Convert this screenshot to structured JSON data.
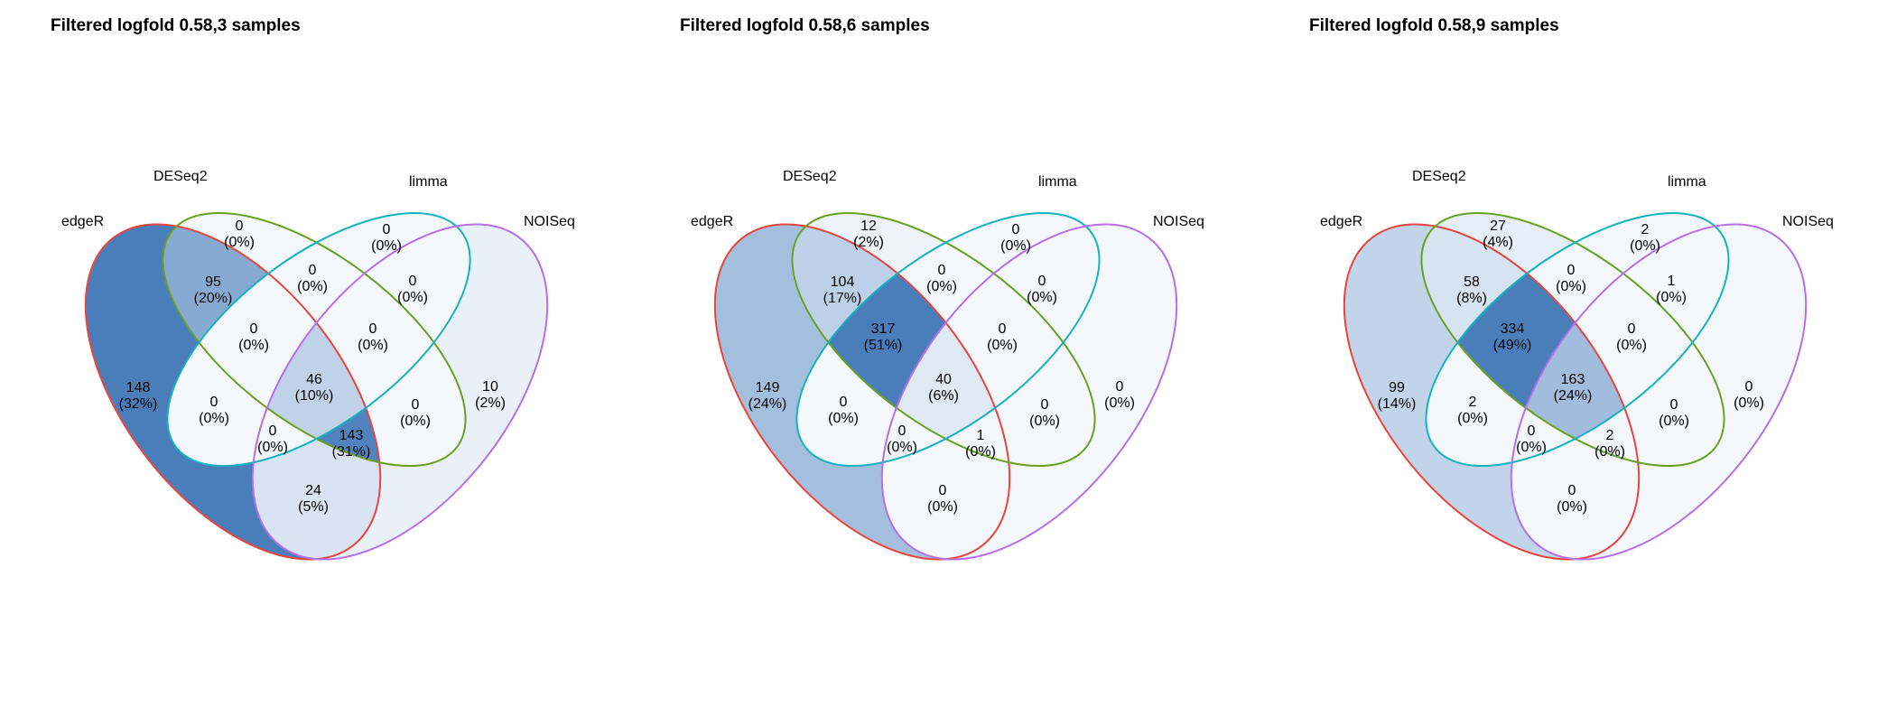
{
  "colors": {
    "edgeR": "#e8453c",
    "DESeq2": "#6aa121",
    "limma": "#14b3bf",
    "NOISeq": "#b76fe8",
    "fill_min": "#f4f8fc",
    "fill_max": "#4a7ebb"
  },
  "panels": [
    {
      "title": "Filtered logfold 0.58,3 samples",
      "sets": [
        "edgeR",
        "DESeq2",
        "limma",
        "NOISeq"
      ],
      "set_labels": [
        "edgeR",
        "DESeq2",
        "limma",
        "NOISeq"
      ],
      "regions": [
        {
          "sets": [
            "edgeR"
          ],
          "count": "148",
          "pct": "(32%)"
        },
        {
          "sets": [
            "DESeq2"
          ],
          "count": "0",
          "pct": "(0%)"
        },
        {
          "sets": [
            "limma"
          ],
          "count": "0",
          "pct": "(0%)"
        },
        {
          "sets": [
            "NOISeq"
          ],
          "count": "10",
          "pct": "(2%)"
        },
        {
          "sets": [
            "edgeR",
            "DESeq2"
          ],
          "count": "95",
          "pct": "(20%)"
        },
        {
          "sets": [
            "DESeq2",
            "limma"
          ],
          "count": "0",
          "pct": "(0%)"
        },
        {
          "sets": [
            "limma",
            "NOISeq"
          ],
          "count": "0",
          "pct": "(0%)"
        },
        {
          "sets": [
            "edgeR",
            "DESeq2",
            "limma"
          ],
          "count": "0",
          "pct": "(0%)"
        },
        {
          "sets": [
            "DESeq2",
            "limma",
            "NOISeq"
          ],
          "count": "0",
          "pct": "(0%)"
        },
        {
          "sets": [
            "edgeR",
            "DESeq2",
            "limma",
            "NOISeq"
          ],
          "count": "46",
          "pct": "(10%)"
        },
        {
          "sets": [
            "edgeR",
            "limma"
          ],
          "count": "0",
          "pct": "(0%)"
        },
        {
          "sets": [
            "DESeq2",
            "NOISeq"
          ],
          "count": "0",
          "pct": "(0%)"
        },
        {
          "sets": [
            "edgeR",
            "limma",
            "NOISeq"
          ],
          "count": "0",
          "pct": "(0%)"
        },
        {
          "sets": [
            "edgeR",
            "DESeq2",
            "NOISeq"
          ],
          "count": "143",
          "pct": "(31%)"
        },
        {
          "sets": [
            "edgeR",
            "NOISeq"
          ],
          "count": "24",
          "pct": "(5%)"
        }
      ]
    },
    {
      "title": "Filtered logfold 0.58,6 samples",
      "sets": [
        "edgeR",
        "DESeq2",
        "limma",
        "NOISeq"
      ],
      "set_labels": [
        "edgeR",
        "DESeq2",
        "limma",
        "NOISeq"
      ],
      "regions": [
        {
          "sets": [
            "edgeR"
          ],
          "count": "149",
          "pct": "(24%)"
        },
        {
          "sets": [
            "DESeq2"
          ],
          "count": "12",
          "pct": "(2%)"
        },
        {
          "sets": [
            "limma"
          ],
          "count": "0",
          "pct": "(0%)"
        },
        {
          "sets": [
            "NOISeq"
          ],
          "count": "0",
          "pct": "(0%)"
        },
        {
          "sets": [
            "edgeR",
            "DESeq2"
          ],
          "count": "104",
          "pct": "(17%)"
        },
        {
          "sets": [
            "DESeq2",
            "limma"
          ],
          "count": "0",
          "pct": "(0%)"
        },
        {
          "sets": [
            "limma",
            "NOISeq"
          ],
          "count": "0",
          "pct": "(0%)"
        },
        {
          "sets": [
            "edgeR",
            "DESeq2",
            "limma"
          ],
          "count": "317",
          "pct": "(51%)"
        },
        {
          "sets": [
            "DESeq2",
            "limma",
            "NOISeq"
          ],
          "count": "0",
          "pct": "(0%)"
        },
        {
          "sets": [
            "edgeR",
            "DESeq2",
            "limma",
            "NOISeq"
          ],
          "count": "40",
          "pct": "(6%)"
        },
        {
          "sets": [
            "edgeR",
            "limma"
          ],
          "count": "0",
          "pct": "(0%)"
        },
        {
          "sets": [
            "DESeq2",
            "NOISeq"
          ],
          "count": "0",
          "pct": "(0%)"
        },
        {
          "sets": [
            "edgeR",
            "limma",
            "NOISeq"
          ],
          "count": "0",
          "pct": "(0%)"
        },
        {
          "sets": [
            "edgeR",
            "DESeq2",
            "NOISeq"
          ],
          "count": "1",
          "pct": "(0%)"
        },
        {
          "sets": [
            "edgeR",
            "NOISeq"
          ],
          "count": "0",
          "pct": "(0%)"
        }
      ]
    },
    {
      "title": "Filtered logfold 0.58,9 samples",
      "sets": [
        "edgeR",
        "DESeq2",
        "limma",
        "NOISeq"
      ],
      "set_labels": [
        "edgeR",
        "DESeq2",
        "limma",
        "NOISeq"
      ],
      "regions": [
        {
          "sets": [
            "edgeR"
          ],
          "count": "99",
          "pct": "(14%)"
        },
        {
          "sets": [
            "DESeq2"
          ],
          "count": "27",
          "pct": "(4%)"
        },
        {
          "sets": [
            "limma"
          ],
          "count": "2",
          "pct": "(0%)"
        },
        {
          "sets": [
            "NOISeq"
          ],
          "count": "0",
          "pct": "(0%)"
        },
        {
          "sets": [
            "edgeR",
            "DESeq2"
          ],
          "count": "58",
          "pct": "(8%)"
        },
        {
          "sets": [
            "DESeq2",
            "limma"
          ],
          "count": "0",
          "pct": "(0%)"
        },
        {
          "sets": [
            "limma",
            "NOISeq"
          ],
          "count": "1",
          "pct": "(0%)"
        },
        {
          "sets": [
            "edgeR",
            "DESeq2",
            "limma"
          ],
          "count": "334",
          "pct": "(49%)"
        },
        {
          "sets": [
            "DESeq2",
            "limma",
            "NOISeq"
          ],
          "count": "0",
          "pct": "(0%)"
        },
        {
          "sets": [
            "edgeR",
            "DESeq2",
            "limma",
            "NOISeq"
          ],
          "count": "163",
          "pct": "(24%)"
        },
        {
          "sets": [
            "edgeR",
            "limma"
          ],
          "count": "2",
          "pct": "(0%)"
        },
        {
          "sets": [
            "DESeq2",
            "NOISeq"
          ],
          "count": "0",
          "pct": "(0%)"
        },
        {
          "sets": [
            "edgeR",
            "limma",
            "NOISeq"
          ],
          "count": "0",
          "pct": "(0%)"
        },
        {
          "sets": [
            "edgeR",
            "DESeq2",
            "NOISeq"
          ],
          "count": "2",
          "pct": "(0%)"
        },
        {
          "sets": [
            "edgeR",
            "NOISeq"
          ],
          "count": "0",
          "pct": "(0%)"
        }
      ]
    }
  ]
}
